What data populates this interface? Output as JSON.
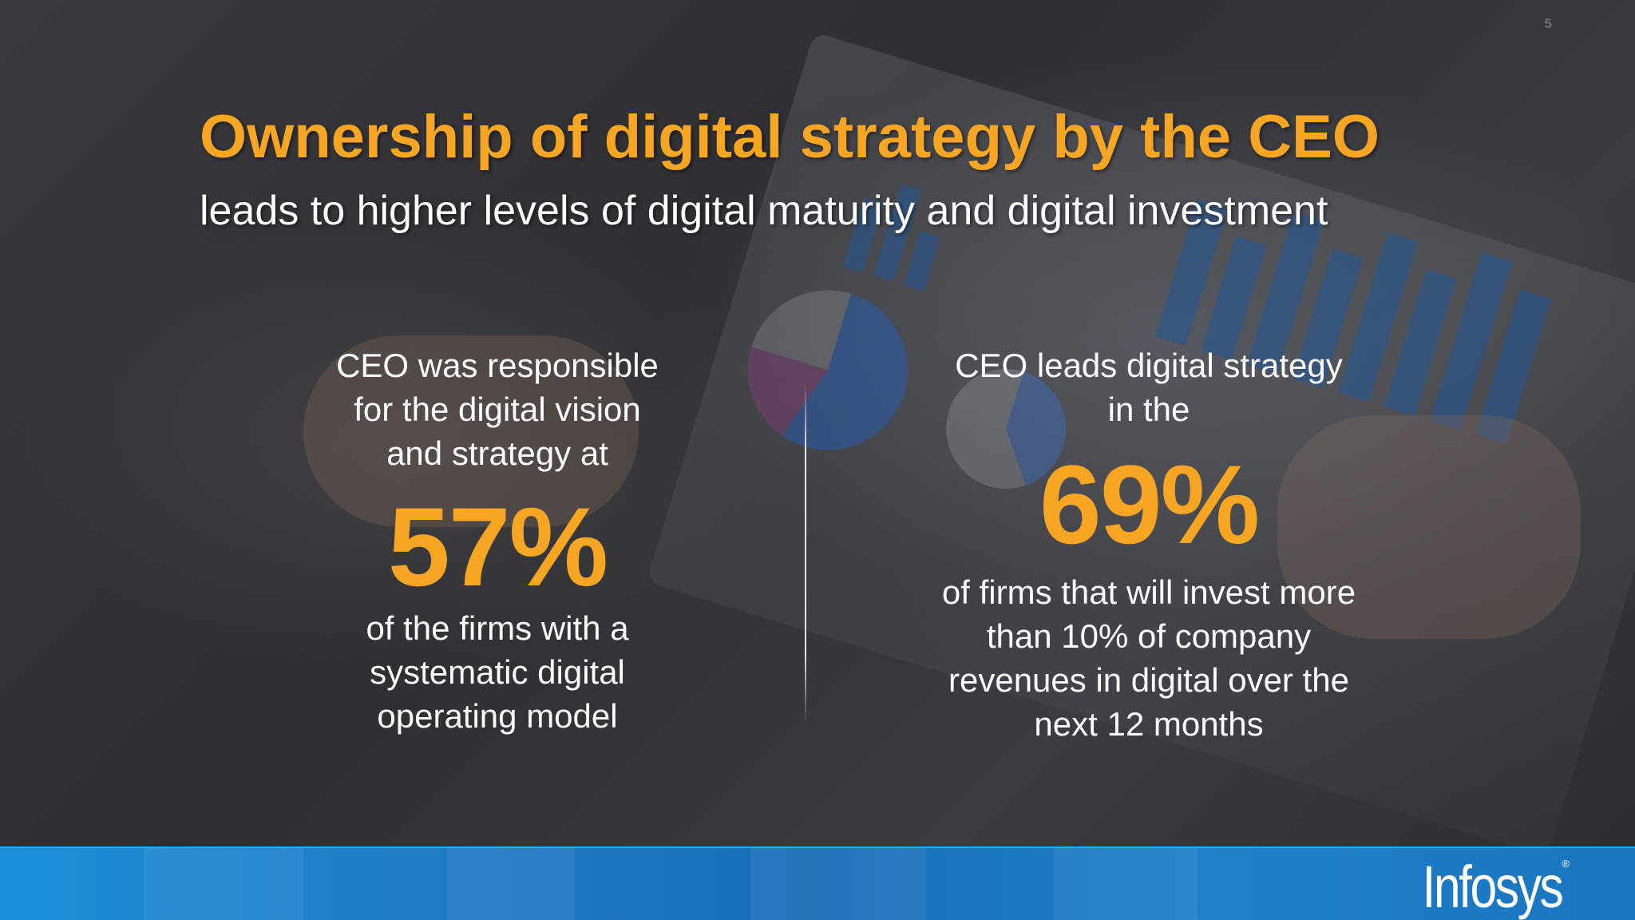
{
  "slide": {
    "page_number": "5",
    "title": "Ownership of digital strategy by the CEO",
    "subtitle": "leads to higher levels of digital maturity and digital investment"
  },
  "stats": [
    {
      "text_lines_before": [
        "CEO was responsible",
        "for the digital vision",
        "and strategy at"
      ],
      "value": "57%",
      "text_lines_after": [
        "of the firms with a",
        "systematic digital",
        "operating model"
      ]
    },
    {
      "text_lines_before": [
        "CEO leads digital strategy",
        "in the"
      ],
      "value": "69%",
      "text_lines_after": [
        "of firms that will invest more",
        "than 10% of company",
        "revenues in digital over the",
        "next 12 months"
      ]
    }
  ],
  "footer": {
    "logo_text": "Infosys",
    "logo_mark": "®"
  },
  "colors": {
    "accent": "#f6a623",
    "text": "#ffffff",
    "footer_blue": "#1b8fd6"
  }
}
